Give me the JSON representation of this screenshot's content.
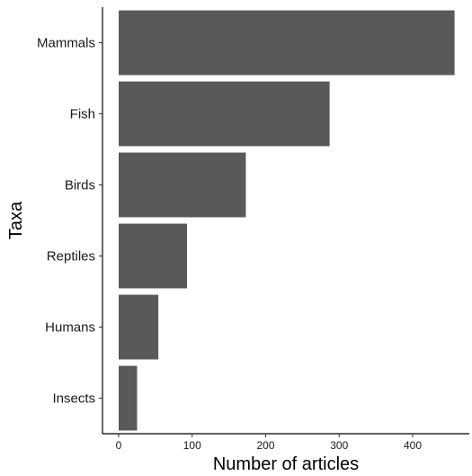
{
  "chart_data": {
    "type": "bar",
    "orientation": "horizontal",
    "categories": [
      "Mammals",
      "Fish",
      "Birds",
      "Reptiles",
      "Humans",
      "Insects"
    ],
    "values": [
      457,
      287,
      173,
      93,
      54,
      25
    ],
    "xlabel": "Number of articles",
    "ylabel": "Taxa",
    "xticks": [
      0,
      100,
      200,
      300,
      400
    ],
    "xlim": [
      0,
      457
    ],
    "grid": false,
    "bar_color": "#595959"
  }
}
